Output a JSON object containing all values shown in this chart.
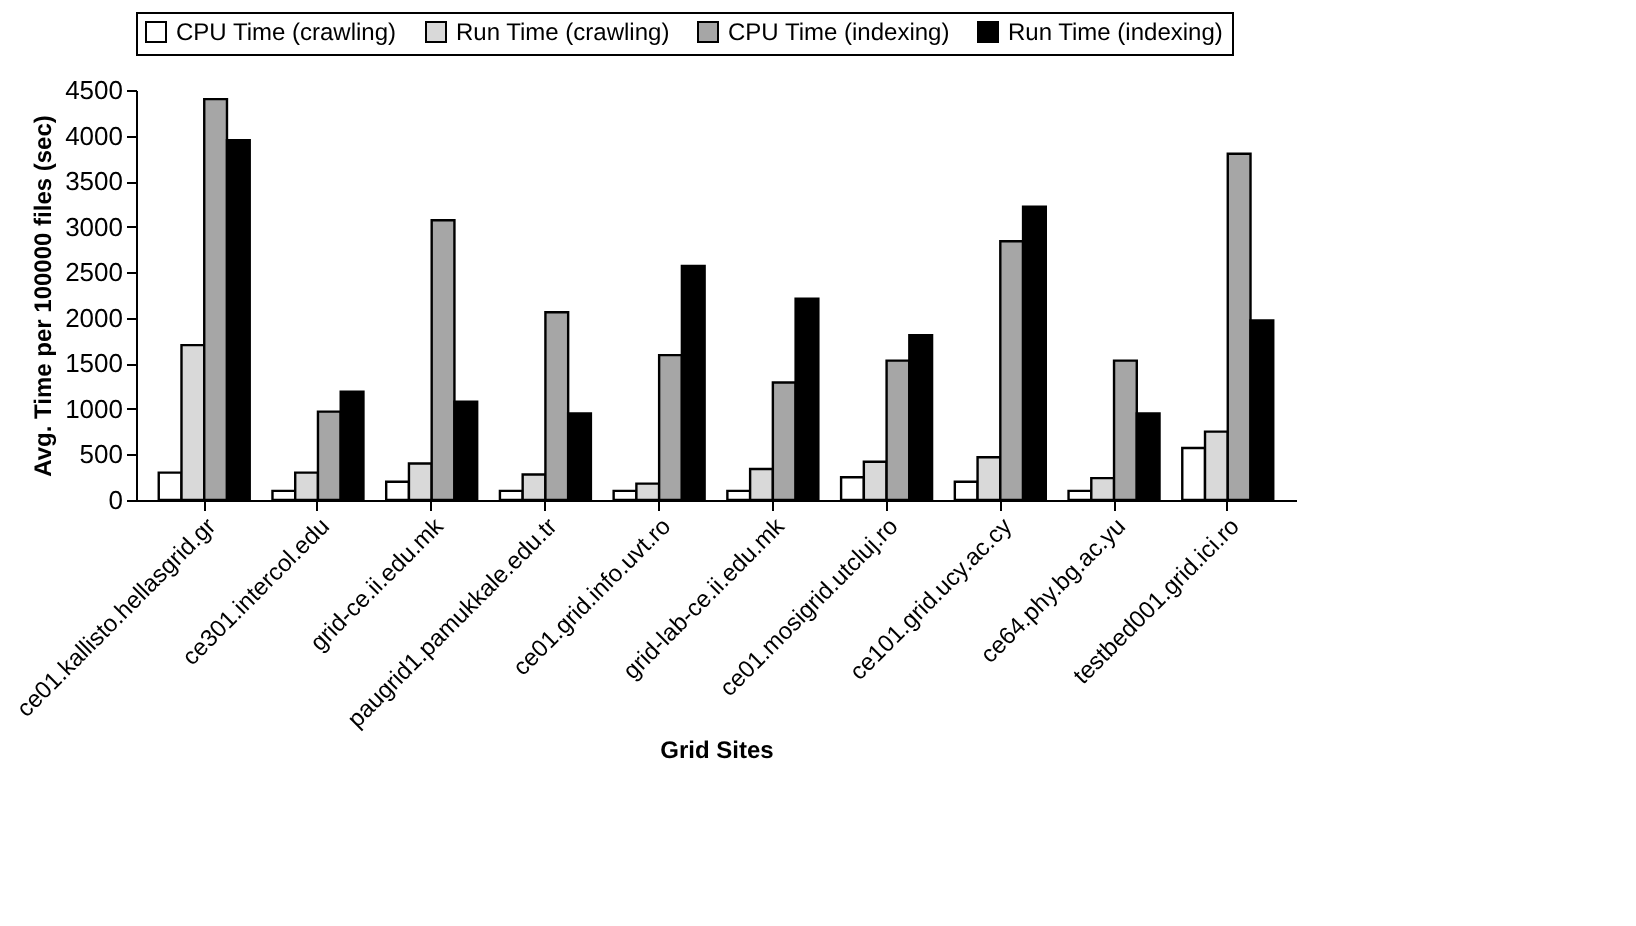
{
  "chart_data": {
    "type": "bar",
    "xlabel": "Grid Sites",
    "ylabel": "Avg. Time per 100000 files (sec)",
    "categories": [
      "ce01.kallisto.hellasgrid.gr",
      "ce301.intercol.edu",
      "grid-ce.ii.edu.mk",
      "paugrid1.pamukkale.edu.tr",
      "ce01.grid.info.uvt.ro",
      "grid-lab-ce.ii.edu.mk",
      "ce01.mosigrid.utcluj.ro",
      "ce101.grid.ucy.ac.cy",
      "ce64.phy.bg.ac.yu",
      "testbed001.grid.ici.ro"
    ],
    "series": [
      {
        "name": "CPU Time (crawling)",
        "color": "#ffffff",
        "values": [
          300,
          100,
          200,
          100,
          100,
          100,
          250,
          200,
          100,
          570
        ]
      },
      {
        "name": "Run Time (crawling)",
        "color": "#d9d9d9",
        "values": [
          1700,
          300,
          400,
          280,
          180,
          340,
          420,
          470,
          240,
          750
        ]
      },
      {
        "name": "CPU Time (indexing)",
        "color": "#a6a6a6",
        "values": [
          4400,
          970,
          3070,
          2060,
          1590,
          1290,
          1530,
          2840,
          1530,
          3800
        ]
      },
      {
        "name": "Run Time (indexing)",
        "color": "#000000",
        "values": [
          3950,
          1190,
          1080,
          950,
          2570,
          2210,
          1810,
          3220,
          950,
          1970
        ]
      }
    ],
    "ylim": [
      0,
      4500
    ],
    "yticks": [
      0,
      500,
      1000,
      1500,
      2000,
      2500,
      3000,
      3500,
      4000,
      4500
    ],
    "grid": false,
    "legend": "top"
  }
}
